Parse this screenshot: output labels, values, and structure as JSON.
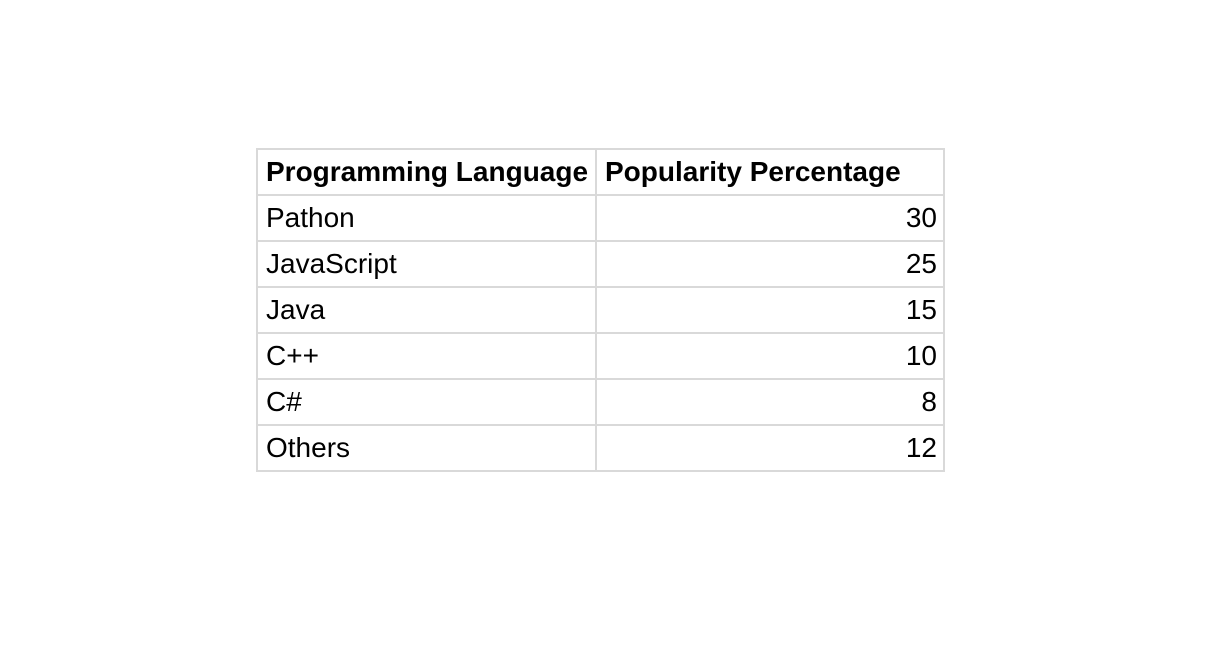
{
  "table": {
    "headers": [
      "Programming Language",
      "Popularity Percentage"
    ],
    "rows": [
      {
        "language": "Pathon",
        "percentage": "30"
      },
      {
        "language": "JavaScript",
        "percentage": "25"
      },
      {
        "language": "Java",
        "percentage": "15"
      },
      {
        "language": "C++",
        "percentage": "10"
      },
      {
        "language": "C#",
        "percentage": "8"
      },
      {
        "language": "Others",
        "percentage": "12"
      }
    ]
  }
}
